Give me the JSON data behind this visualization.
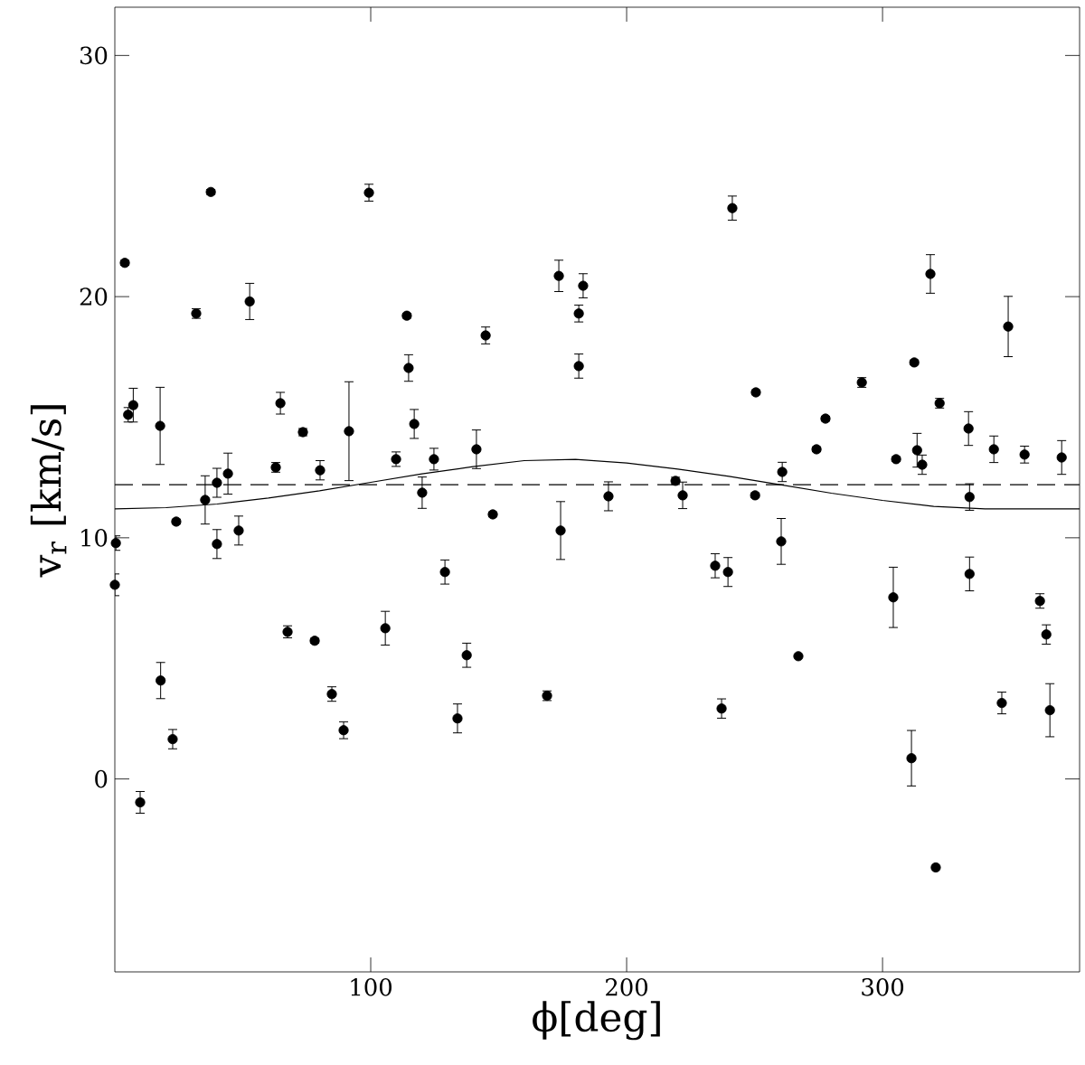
{
  "chart_data": {
    "type": "scatter",
    "xlabel": "ϕ[deg]",
    "ylabel": "v$_{r}$ [km/s]",
    "xlim": [
      0,
      377
    ],
    "ylim": [
      -8,
      32
    ],
    "xticks": [
      100,
      200,
      300
    ],
    "yticks": [
      0,
      10,
      20,
      30
    ],
    "grid": false,
    "ref_lines": [
      {
        "axis": "y",
        "value": 12.2,
        "line_style": "dashed",
        "color": "#000000"
      }
    ],
    "series": [
      {
        "color": "#000000",
        "marker": "circle",
        "x": [
          0.0,
          0.4,
          3.9,
          5.2,
          7.2,
          9.9,
          17.7,
          17.9,
          22.6,
          24.0,
          31.8,
          35.3,
          37.5,
          39.9,
          39.9,
          44.2,
          48.4,
          52.7,
          62.9,
          64.7,
          67.5,
          73.5,
          78.1,
          80.2,
          84.8,
          89.4,
          91.5,
          99.3,
          105.7,
          109.9,
          114.1,
          114.8,
          117.0,
          120.1,
          124.7,
          129.0,
          133.9,
          137.5,
          141.3,
          144.9,
          147.7,
          168.9,
          173.5,
          174.2,
          183.0,
          181.3,
          181.3,
          192.9,
          219.1,
          221.9,
          234.6,
          237.1,
          239.6,
          241.3,
          250.2,
          250.5,
          260.4,
          260.8,
          267.1,
          274.2,
          277.7,
          291.9,
          304.2,
          305.3,
          311.3,
          312.4,
          313.5,
          315.5,
          318.7,
          320.8,
          322.3,
          333.6,
          334.0,
          334.0,
          343.5,
          346.6,
          349.1,
          355.5,
          361.5,
          364.0,
          365.4,
          370.0
        ],
        "values": [
          8.05,
          9.78,
          21.4,
          15.1,
          15.5,
          -0.97,
          14.64,
          4.08,
          1.65,
          10.67,
          19.3,
          11.57,
          24.34,
          12.28,
          9.74,
          12.66,
          10.3,
          19.8,
          12.92,
          15.58,
          6.1,
          14.38,
          5.73,
          12.8,
          3.52,
          2.02,
          14.42,
          24.31,
          6.25,
          13.26,
          19.21,
          17.04,
          14.72,
          11.87,
          13.26,
          8.58,
          2.51,
          5.13,
          13.67,
          18.39,
          10.97,
          3.45,
          20.86,
          10.3,
          20.45,
          19.3,
          17.12,
          11.72,
          12.36,
          11.76,
          8.84,
          2.92,
          8.58,
          23.67,
          11.76,
          16.03,
          9.85,
          12.73,
          5.09,
          13.67,
          14.94,
          16.44,
          7.53,
          13.26,
          0.86,
          17.27,
          13.63,
          13.03,
          20.94,
          -3.67,
          15.58,
          14.53,
          11.69,
          8.5,
          13.67,
          3.15,
          18.76,
          13.45,
          7.38,
          5.99,
          2.85,
          13.33
        ],
        "errors": [
          0.45,
          0.3,
          0.1,
          0.3,
          0.7,
          0.45,
          1.6,
          0.75,
          0.4,
          0.1,
          0.2,
          1.0,
          0.1,
          0.6,
          0.6,
          0.85,
          0.6,
          0.75,
          0.2,
          0.45,
          0.25,
          0.15,
          0.1,
          0.4,
          0.3,
          0.35,
          2.05,
          0.35,
          0.7,
          0.3,
          0.1,
          0.55,
          0.6,
          0.65,
          0.45,
          0.5,
          0.6,
          0.5,
          0.8,
          0.35,
          0.1,
          0.2,
          0.65,
          1.2,
          0.5,
          0.35,
          0.5,
          0.6,
          0.15,
          0.55,
          0.5,
          0.4,
          0.6,
          0.5,
          0.1,
          0.1,
          0.95,
          0.4,
          null,
          0.1,
          0.1,
          0.2,
          1.25,
          0.1,
          1.15,
          0.1,
          0.7,
          0.4,
          0.8,
          null,
          0.2,
          0.7,
          0.55,
          0.7,
          0.55,
          0.45,
          1.25,
          0.35,
          0.3,
          0.4,
          1.1,
          0.7
        ]
      },
      {
        "type": "line",
        "color": "#000000",
        "marker": "none",
        "line_style": "solid",
        "x": [
          0,
          20,
          40,
          60,
          80,
          100,
          120,
          140,
          160,
          180,
          200,
          220,
          240,
          260,
          280,
          300,
          320,
          340,
          360,
          377
        ],
        "values": [
          11.2,
          11.25,
          11.4,
          11.65,
          11.95,
          12.3,
          12.65,
          12.95,
          13.2,
          13.25,
          13.1,
          12.85,
          12.55,
          12.2,
          11.85,
          11.55,
          11.3,
          11.2,
          11.2,
          11.2
        ]
      }
    ]
  }
}
